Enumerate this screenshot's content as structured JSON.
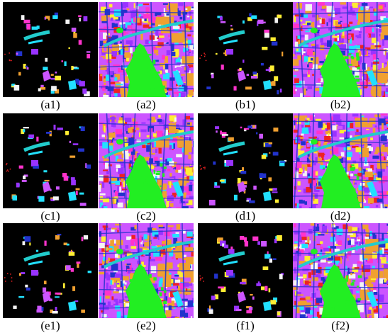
{
  "panels": [
    {
      "label": "(a1)",
      "kind": "sparse"
    },
    {
      "label": "(a2)",
      "kind": "dense"
    },
    {
      "label": "(b1)",
      "kind": "sparse"
    },
    {
      "label": "(b2)",
      "kind": "dense"
    },
    {
      "label": "(c1)",
      "kind": "sparse"
    },
    {
      "label": "(c2)",
      "kind": "dense"
    },
    {
      "label": "(d1)",
      "kind": "sparse"
    },
    {
      "label": "(d2)",
      "kind": "dense"
    },
    {
      "label": "(e1)",
      "kind": "sparse"
    },
    {
      "label": "(e2)",
      "kind": "dense"
    },
    {
      "label": "(f1)",
      "kind": "sparse"
    },
    {
      "label": "(f2)",
      "kind": "dense"
    }
  ],
  "class_colors": {
    "background": "#000000",
    "vegetation": "#22ee22",
    "water": "#22cccc",
    "cyan": "#22e0ff",
    "purple": "#9933ff",
    "violet": "#cc55ff",
    "magenta": "#ff33cc",
    "orange": "#f0a030",
    "red": "#ee2222",
    "yellow": "#ffee33",
    "blue": "#2233cc",
    "white": "#f4f4f4"
  }
}
